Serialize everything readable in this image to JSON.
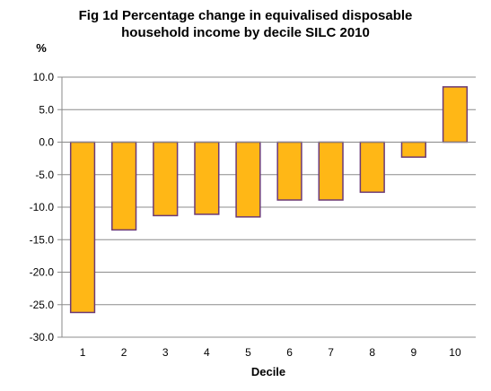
{
  "chart_data": {
    "type": "bar",
    "title_lines": [
      "Fig 1d Percentage  change in equivalised disposable",
      "household income by decile SILC 2010"
    ],
    "ylabel": "%",
    "xlabel": "Decile",
    "categories": [
      "1",
      "2",
      "3",
      "4",
      "5",
      "6",
      "7",
      "8",
      "9",
      "10"
    ],
    "values": [
      -26.2,
      -13.5,
      -11.3,
      -11.1,
      -11.5,
      -8.9,
      -8.9,
      -7.7,
      -2.3,
      8.5
    ],
    "ylim": [
      -30,
      10
    ],
    "ytick_labels": [
      "10.0",
      "5.0",
      "0.0",
      "-5.0",
      "-10.0",
      "-15.0",
      "-20.0",
      "-25.0",
      "-30.0"
    ],
    "grid": true,
    "bar_fill": "#FFB716",
    "bar_stroke": "#6B3A76"
  }
}
